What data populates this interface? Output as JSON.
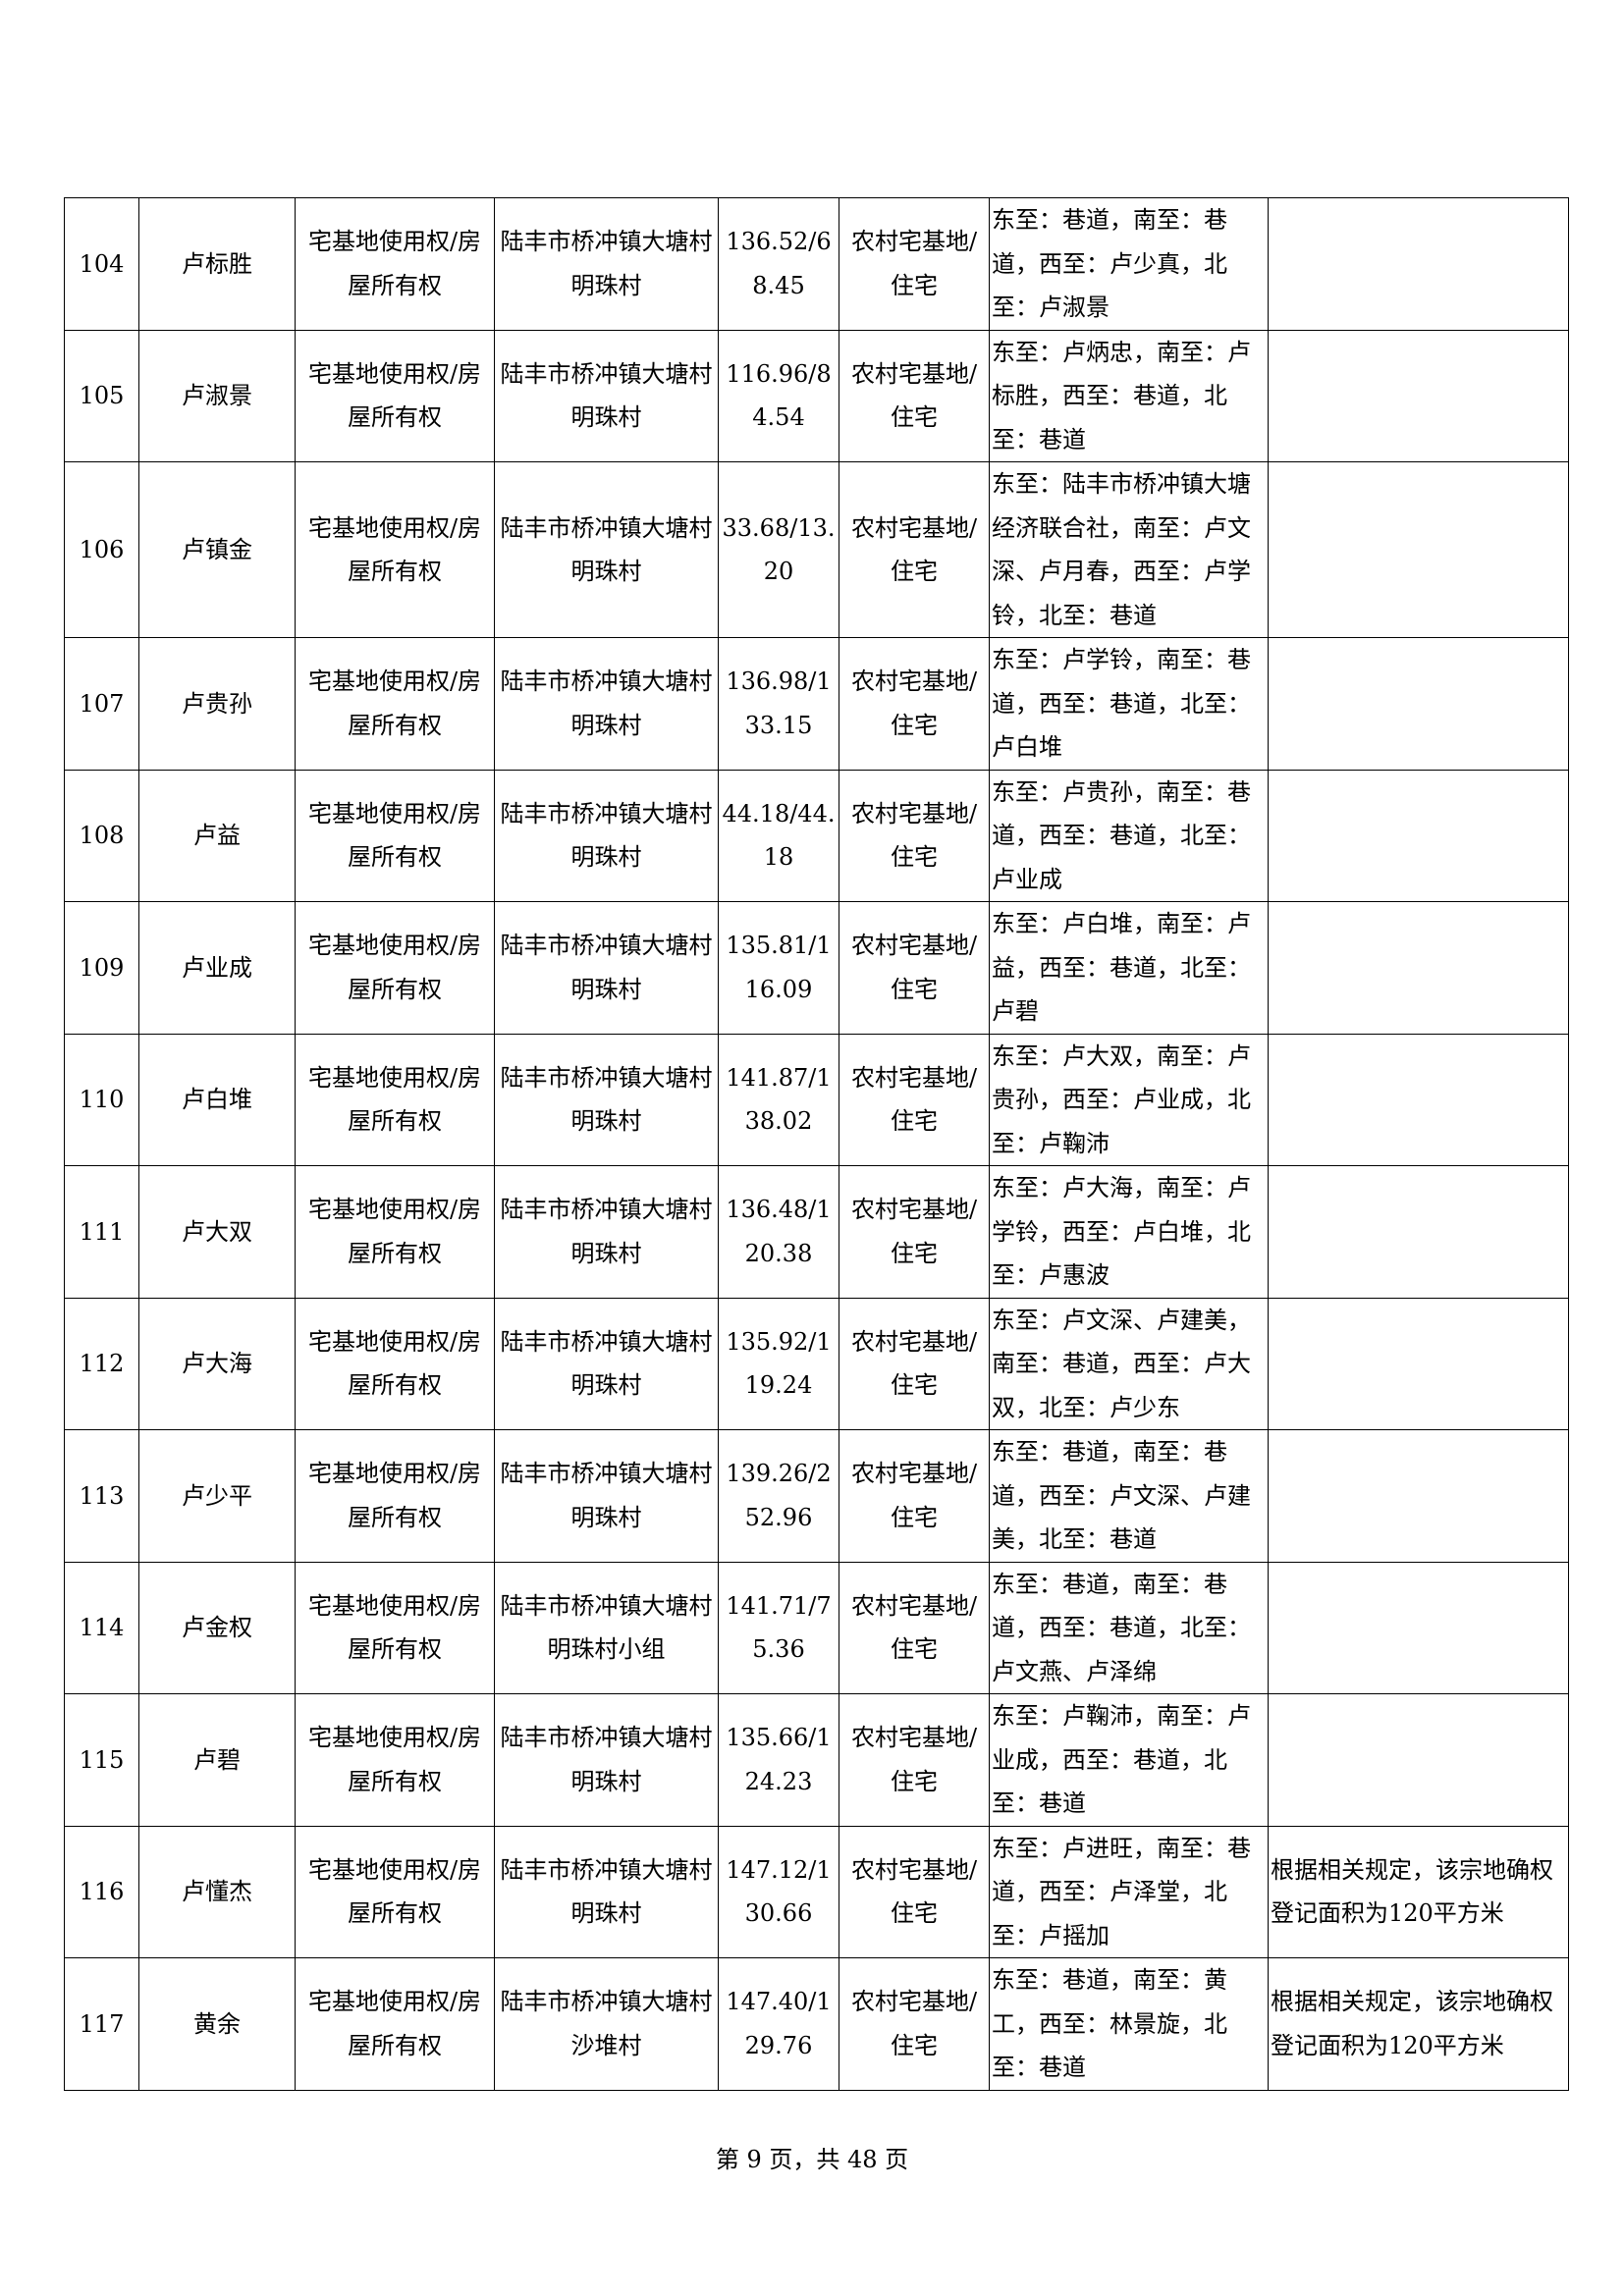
{
  "rows": [
    {
      "no": "104",
      "name": "卢标胜",
      "right_type": "宅基地使用权/房屋所有权",
      "location": "陆丰市桥冲镇大塘村明珠村",
      "area": "136.52/68.45",
      "use": "农村宅基地/住宅",
      "boundary": "东至：巷道，南至：巷道，西至：卢少真，北至：卢淑景",
      "note": ""
    },
    {
      "no": "105",
      "name": "卢淑景",
      "right_type": "宅基地使用权/房屋所有权",
      "location": "陆丰市桥冲镇大塘村明珠村",
      "area": "116.96/84.54",
      "use": "农村宅基地/住宅",
      "boundary": "东至：卢炳忠，南至：卢标胜，西至：巷道，北至：巷道",
      "note": ""
    },
    {
      "no": "106",
      "name": "卢镇金",
      "right_type": "宅基地使用权/房屋所有权",
      "location": "陆丰市桥冲镇大塘村明珠村",
      "area": "33.68/13.20",
      "use": "农村宅基地/住宅",
      "boundary": "东至：陆丰市桥冲镇大塘经济联合社，南至：卢文深、卢月春，西至：卢学铃，北至：巷道",
      "note": ""
    },
    {
      "no": "107",
      "name": "卢贵孙",
      "right_type": "宅基地使用权/房屋所有权",
      "location": "陆丰市桥冲镇大塘村明珠村",
      "area": "136.98/133.15",
      "use": "农村宅基地/住宅",
      "boundary": "东至：卢学铃，南至：巷道，西至：巷道，北至：卢白堆",
      "note": ""
    },
    {
      "no": "108",
      "name": "卢益",
      "right_type": "宅基地使用权/房屋所有权",
      "location": "陆丰市桥冲镇大塘村明珠村",
      "area": "44.18/44.18",
      "use": "农村宅基地/住宅",
      "boundary": "东至：卢贵孙，南至：巷道，西至：巷道，北至：卢业成",
      "note": ""
    },
    {
      "no": "109",
      "name": "卢业成",
      "right_type": "宅基地使用权/房屋所有权",
      "location": "陆丰市桥冲镇大塘村明珠村",
      "area": "135.81/116.09",
      "use": "农村宅基地/住宅",
      "boundary": "东至：卢白堆，南至：卢益，西至：巷道，北至：卢碧",
      "note": ""
    },
    {
      "no": "110",
      "name": "卢白堆",
      "right_type": "宅基地使用权/房屋所有权",
      "location": "陆丰市桥冲镇大塘村明珠村",
      "area": "141.87/138.02",
      "use": "农村宅基地/住宅",
      "boundary": "东至：卢大双，南至：卢贵孙，西至：卢业成，北至：卢鞠沛",
      "note": ""
    },
    {
      "no": "111",
      "name": "卢大双",
      "right_type": "宅基地使用权/房屋所有权",
      "location": "陆丰市桥冲镇大塘村明珠村",
      "area": "136.48/120.38",
      "use": "农村宅基地/住宅",
      "boundary": "东至：卢大海，南至：卢学铃，西至：卢白堆，北至：卢惠波",
      "note": ""
    },
    {
      "no": "112",
      "name": "卢大海",
      "right_type": "宅基地使用权/房屋所有权",
      "location": "陆丰市桥冲镇大塘村明珠村",
      "area": "135.92/119.24",
      "use": "农村宅基地/住宅",
      "boundary": "东至：卢文深、卢建美，南至：巷道，西至：卢大双，北至：卢少东",
      "note": ""
    },
    {
      "no": "113",
      "name": "卢少平",
      "right_type": "宅基地使用权/房屋所有权",
      "location": "陆丰市桥冲镇大塘村明珠村",
      "area": "139.26/252.96",
      "use": "农村宅基地/住宅",
      "boundary": "东至：巷道，南至：巷道，西至：卢文深、卢建美，北至：巷道",
      "note": ""
    },
    {
      "no": "114",
      "name": "卢金权",
      "right_type": "宅基地使用权/房屋所有权",
      "location": "陆丰市桥冲镇大塘村明珠村小组",
      "area": "141.71/75.36",
      "use": "农村宅基地/住宅",
      "boundary": "东至：巷道，南至：巷道，西至：巷道，北至：卢文燕、卢泽绵",
      "note": ""
    },
    {
      "no": "115",
      "name": "卢碧",
      "right_type": "宅基地使用权/房屋所有权",
      "location": "陆丰市桥冲镇大塘村明珠村",
      "area": "135.66/124.23",
      "use": "农村宅基地/住宅",
      "boundary": "东至：卢鞠沛，南至：卢业成，西至：巷道，北至：巷道",
      "note": ""
    },
    {
      "no": "116",
      "name": "卢懂杰",
      "right_type": "宅基地使用权/房屋所有权",
      "location": "陆丰市桥冲镇大塘村明珠村",
      "area": "147.12/130.66",
      "use": "农村宅基地/住宅",
      "boundary": "东至：卢进旺，南至：巷道，西至：卢泽堂，北至：卢摇加",
      "note": "根据相关规定，该宗地确权登记面积为120平方米"
    },
    {
      "no": "117",
      "name": "黄余",
      "right_type": "宅基地使用权/房屋所有权",
      "location": "陆丰市桥冲镇大塘村沙堆村",
      "area": "147.40/129.76",
      "use": "农村宅基地/住宅",
      "boundary": "东至：巷道，南至：黄工，西至：林景旋，北至：巷道",
      "note": "根据相关规定，该宗地确权登记面积为120平方米"
    }
  ],
  "footer": {
    "text": "第 9 页，共 48 页"
  }
}
